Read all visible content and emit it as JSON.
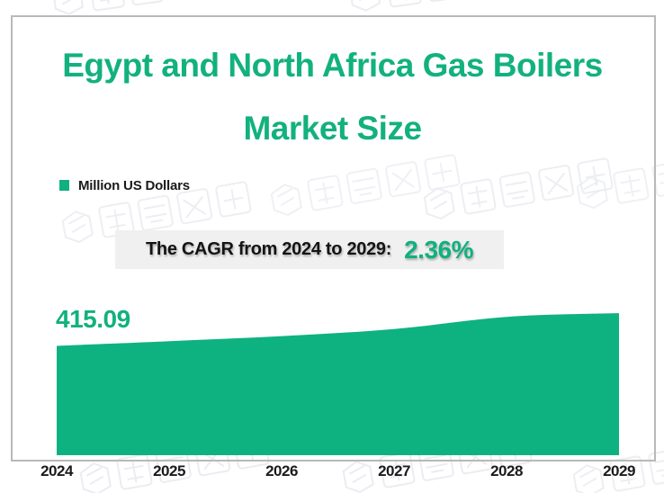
{
  "title": {
    "line1": "Egypt and North Africa Gas Boilers",
    "line2": "Market Size"
  },
  "legend": {
    "label": "Million US Dollars"
  },
  "cagr": {
    "prefix": "The CAGR from 2024 to 2029:",
    "value": "2.36%"
  },
  "colors": {
    "accent_green": "#12b17e",
    "area_fill": "#0eb280",
    "cagr_box_bg": "#f0f0f0",
    "frame_border": "#b9b9b9",
    "text_dark": "#1a1a1a"
  },
  "chart_data": {
    "type": "area",
    "title": "Egypt and North Africa Gas Boilers Market Size",
    "ylabel": "Million US Dollars",
    "categories": [
      "2024",
      "2025",
      "2026",
      "2027",
      "2028",
      "2029"
    ],
    "series": [
      {
        "name": "Market Size (Million US Dollars)",
        "values": [
          415.09,
          422.5,
          430.5,
          441.5,
          460.5,
          466.4
        ]
      }
    ],
    "start_value_label": "415.09",
    "cagr_2024_to_2029": "2.36%",
    "grid": false,
    "legend_position": "top-left",
    "x_axis_position": "bottom",
    "y_axis_visible": false
  }
}
